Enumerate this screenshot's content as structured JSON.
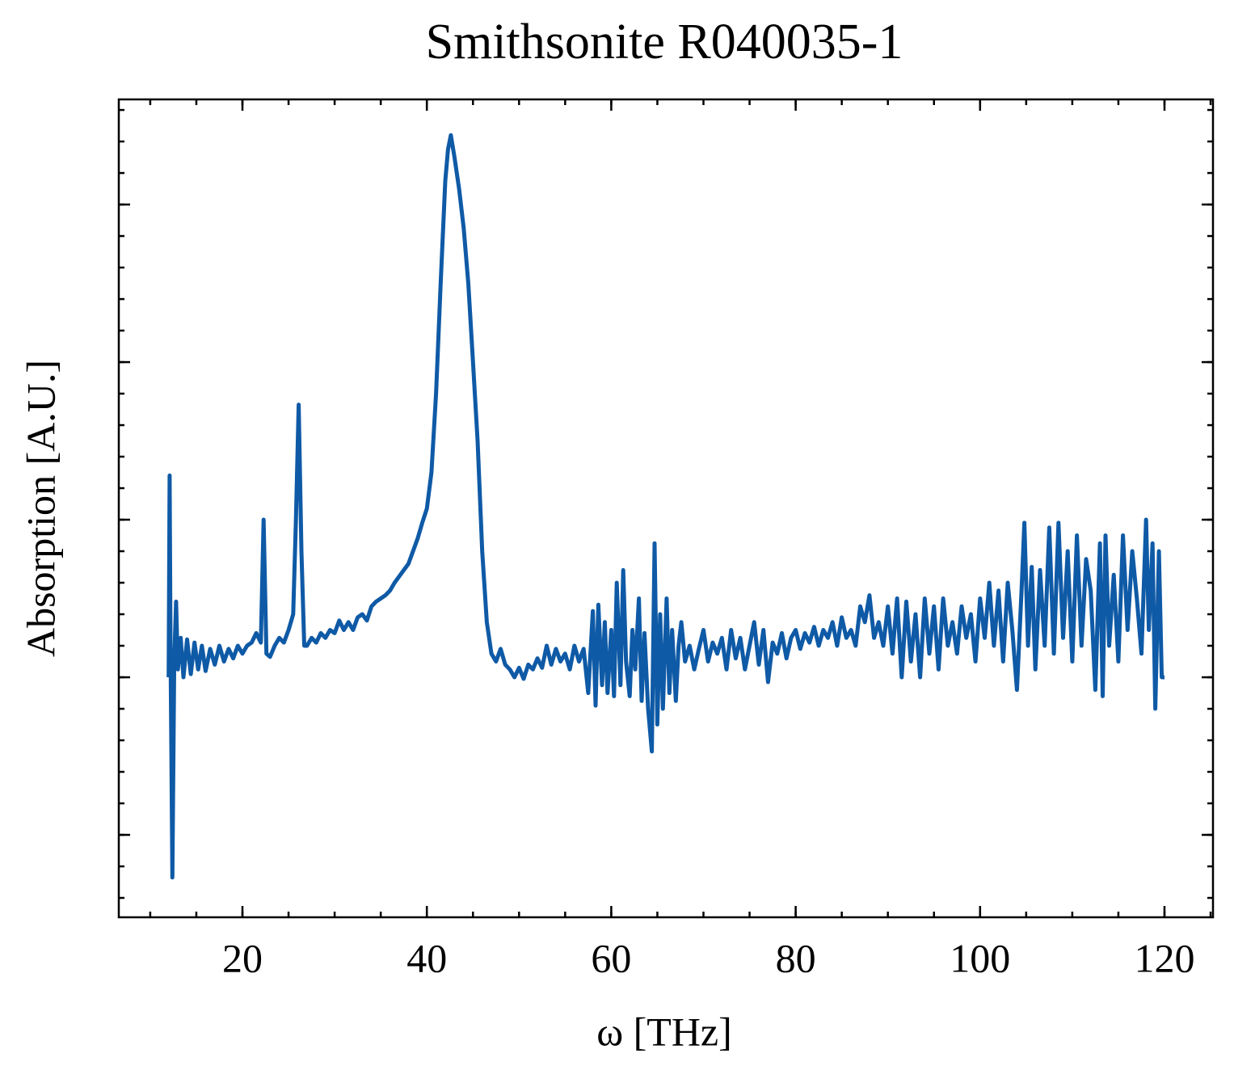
{
  "chart_data": {
    "type": "line",
    "title": "Smithsonite R040035-1",
    "xlabel": "ω [THz]",
    "ylabel": "Absorption [A.U.]",
    "xlim": [
      6.59,
      125.26
    ],
    "xticks": [
      20,
      40,
      60,
      80,
      100,
      120
    ],
    "ylim": [
      -1.523,
      3.667
    ],
    "yticks": [
      -1,
      0,
      1,
      2,
      3
    ],
    "series": [
      {
        "color": "#0f5aa6",
        "x": [
          12.0,
          12.1,
          12.2,
          12.4,
          12.6,
          12.8,
          13.0,
          13.3,
          13.6,
          14.0,
          14.4,
          14.8,
          15.2,
          15.6,
          16.0,
          16.5,
          17.0,
          17.5,
          18.0,
          18.5,
          19.0,
          19.5,
          20.0,
          20.5,
          21.0,
          21.5,
          22.0,
          22.3,
          22.6,
          23.0,
          23.5,
          24.0,
          24.5,
          25.0,
          25.5,
          25.8,
          26.1,
          26.4,
          26.7,
          27.0,
          27.5,
          28.0,
          28.5,
          29.0,
          29.5,
          30.0,
          30.5,
          31.0,
          31.5,
          32.0,
          32.5,
          33.0,
          33.5,
          34.0,
          34.5,
          35.0,
          35.5,
          36.0,
          36.5,
          37.0,
          37.5,
          38.0,
          38.5,
          39.0,
          39.5,
          40.0,
          40.5,
          41.0,
          41.5,
          42.0,
          42.3,
          42.6,
          43.0,
          43.5,
          44.0,
          44.5,
          45.0,
          45.5,
          46.0,
          46.5,
          47.0,
          47.5,
          48.0,
          48.5,
          49.0,
          49.5,
          50.0,
          50.5,
          51.0,
          51.5,
          52.0,
          52.5,
          53.0,
          53.5,
          54.0,
          54.5,
          55.0,
          55.5,
          56.0,
          56.5,
          57.0,
          57.5,
          58.0,
          58.3,
          58.6,
          59.0,
          59.3,
          59.6,
          60.0,
          60.3,
          60.6,
          61.0,
          61.3,
          61.6,
          62.0,
          62.3,
          62.6,
          63.0,
          63.3,
          63.6,
          64.0,
          64.4,
          64.7,
          65.0,
          65.3,
          65.6,
          66.0,
          66.3,
          66.6,
          67.0,
          67.3,
          67.6,
          68.0,
          68.5,
          69.0,
          69.5,
          70.0,
          70.5,
          71.0,
          71.5,
          72.0,
          72.5,
          73.0,
          73.5,
          74.0,
          74.5,
          75.0,
          75.5,
          76.0,
          76.5,
          77.0,
          77.5,
          78.0,
          78.5,
          79.0,
          79.5,
          80.0,
          80.5,
          81.0,
          81.5,
          82.0,
          82.5,
          83.0,
          83.5,
          84.0,
          84.5,
          85.0,
          85.5,
          86.0,
          86.5,
          87.0,
          87.5,
          88.0,
          88.5,
          89.0,
          89.5,
          90.0,
          90.5,
          91.0,
          91.5,
          92.0,
          92.5,
          93.0,
          93.5,
          94.0,
          94.5,
          95.0,
          95.5,
          96.0,
          96.5,
          97.0,
          97.5,
          98.0,
          98.5,
          99.0,
          99.5,
          100.0,
          100.5,
          101.0,
          101.5,
          102.0,
          102.5,
          103.0,
          103.5,
          104.0,
          104.5,
          104.8,
          105.2,
          105.6,
          106.0,
          106.5,
          107.0,
          107.5,
          108.0,
          108.5,
          109.0,
          109.5,
          110.0,
          110.5,
          111.0,
          111.5,
          112.0,
          112.5,
          113.0,
          113.3,
          113.6,
          114.0,
          114.5,
          115.0,
          115.5,
          116.0,
          116.5,
          117.0,
          117.5,
          118.0,
          118.3,
          118.7,
          119.0,
          119.4,
          119.7,
          120.0
        ],
        "values": [
          0,
          1.28,
          0.2,
          -1.27,
          0.1,
          0.48,
          0.05,
          0.25,
          0.0,
          0.24,
          0.02,
          0.22,
          0.05,
          0.2,
          0.04,
          0.18,
          0.08,
          0.2,
          0.1,
          0.18,
          0.12,
          0.2,
          0.15,
          0.2,
          0.22,
          0.28,
          0.22,
          1.0,
          0.15,
          0.13,
          0.2,
          0.25,
          0.22,
          0.3,
          0.4,
          1.0,
          1.73,
          0.8,
          0.2,
          0.2,
          0.25,
          0.22,
          0.28,
          0.25,
          0.3,
          0.28,
          0.36,
          0.3,
          0.35,
          0.3,
          0.38,
          0.4,
          0.36,
          0.45,
          0.48,
          0.5,
          0.52,
          0.55,
          0.6,
          0.64,
          0.68,
          0.72,
          0.8,
          0.88,
          0.98,
          1.07,
          1.3,
          1.8,
          2.5,
          3.15,
          3.35,
          3.44,
          3.3,
          3.1,
          2.85,
          2.5,
          2.0,
          1.5,
          0.8,
          0.35,
          0.15,
          0.1,
          0.18,
          0.08,
          0.05,
          0.0,
          0.06,
          -0.01,
          0.08,
          0.05,
          0.12,
          0.06,
          0.2,
          0.08,
          0.18,
          0.1,
          0.15,
          0.05,
          0.2,
          0.1,
          0.18,
          -0.1,
          0.42,
          -0.18,
          0.46,
          -0.05,
          0.35,
          -0.1,
          0.3,
          -0.12,
          0.6,
          -0.05,
          0.68,
          0.1,
          -0.12,
          0.3,
          0.05,
          0.5,
          -0.15,
          0.28,
          -0.2,
          -0.47,
          0.85,
          -0.3,
          0.4,
          -0.2,
          0.5,
          -0.1,
          0.3,
          -0.15,
          0.2,
          0.35,
          0.1,
          0.2,
          0.05,
          0.18,
          0.3,
          0.1,
          0.22,
          0.15,
          0.25,
          0.05,
          0.3,
          0.12,
          0.25,
          0.05,
          0.2,
          0.35,
          0.08,
          0.3,
          -0.03,
          0.22,
          0.15,
          0.28,
          0.12,
          0.25,
          0.3,
          0.18,
          0.28,
          0.22,
          0.32,
          0.2,
          0.3,
          0.25,
          0.35,
          0.2,
          0.38,
          0.25,
          0.3,
          0.2,
          0.45,
          0.35,
          0.52,
          0.25,
          0.35,
          0.2,
          0.45,
          0.15,
          0.5,
          0.0,
          0.48,
          0.1,
          0.4,
          0.0,
          0.5,
          0.15,
          0.45,
          0.05,
          0.5,
          0.2,
          0.35,
          0.15,
          0.45,
          0.25,
          0.4,
          0.1,
          0.5,
          0.25,
          0.6,
          0.2,
          0.55,
          0.1,
          0.6,
          0.3,
          -0.08,
          0.55,
          0.98,
          0.2,
          0.7,
          0.05,
          0.68,
          0.2,
          0.95,
          0.15,
          0.98,
          0.25,
          0.8,
          0.1,
          0.9,
          0.2,
          0.75,
          0.55,
          -0.08,
          0.85,
          -0.12,
          0.9,
          0.2,
          0.65,
          0.1,
          0.9,
          0.3,
          0.8,
          0.5,
          0.15,
          1.0,
          0.3,
          0.85,
          -0.2,
          0.8,
          0.0,
          0.0
        ]
      }
    ]
  }
}
